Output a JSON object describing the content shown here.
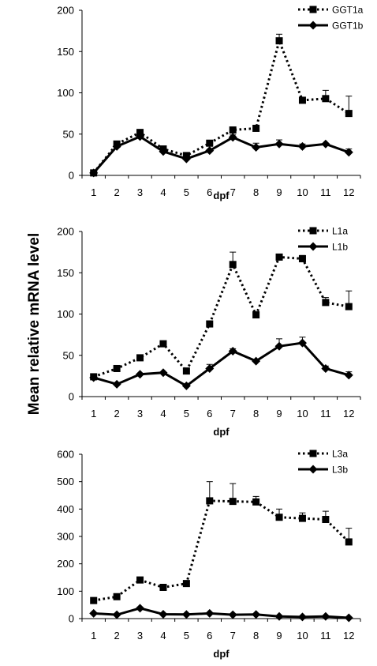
{
  "ylabel": "Mean  relative  mRNA  level",
  "chart_data": [
    {
      "type": "line",
      "xlabel": "dpf",
      "x": [
        "1",
        "2",
        "3",
        "4",
        "5",
        "6",
        "7",
        "8",
        "9",
        "10",
        "11",
        "12"
      ],
      "ylim": [
        0,
        200
      ],
      "yticks": [
        0,
        50,
        100,
        150,
        200
      ],
      "grid": false,
      "legend_position": "top-right",
      "series": [
        {
          "name": "GGT1a",
          "style": "dotted",
          "marker": "square",
          "values": [
            3,
            38,
            52,
            32,
            24,
            39,
            55,
            57,
            163,
            91,
            93,
            75
          ],
          "error": [
            0,
            2,
            2,
            2,
            2,
            2,
            2,
            2,
            8,
            3,
            10,
            21
          ]
        },
        {
          "name": "GGT1b",
          "style": "solid",
          "marker": "diamond",
          "values": [
            3,
            35,
            47,
            29,
            20,
            30,
            46,
            34,
            38,
            35,
            38,
            28
          ],
          "error": [
            0,
            2,
            2,
            2,
            2,
            2,
            3,
            5,
            5,
            3,
            2,
            4
          ]
        }
      ]
    },
    {
      "type": "line",
      "xlabel": "dpf",
      "x": [
        "1",
        "2",
        "3",
        "4",
        "5",
        "6",
        "7",
        "8",
        "9",
        "10",
        "11",
        "12"
      ],
      "ylim": [
        0,
        200
      ],
      "yticks": [
        0,
        50,
        100,
        150,
        200
      ],
      "grid": false,
      "legend_position": "top-right",
      "series": [
        {
          "name": "L1a",
          "style": "dotted",
          "marker": "square",
          "values": [
            24,
            34,
            47,
            64,
            31,
            88,
            160,
            99,
            169,
            167,
            114,
            109
          ],
          "error": [
            0,
            2,
            2,
            2,
            2,
            2,
            15,
            3,
            2,
            4,
            6,
            19
          ]
        },
        {
          "name": "L1b",
          "style": "solid",
          "marker": "diamond",
          "values": [
            23,
            15,
            27,
            29,
            13,
            34,
            55,
            43,
            61,
            65,
            34,
            26
          ],
          "error": [
            0,
            2,
            2,
            2,
            2,
            5,
            3,
            2,
            9,
            7,
            3,
            4
          ]
        }
      ]
    },
    {
      "type": "line",
      "xlabel": "dpf",
      "x": [
        "1",
        "2",
        "3",
        "4",
        "5",
        "6",
        "7",
        "8",
        "9",
        "10",
        "11",
        "12"
      ],
      "ylim": [
        0,
        600
      ],
      "yticks": [
        0,
        100,
        200,
        300,
        400,
        500,
        600
      ],
      "grid": false,
      "legend_position": "top-right",
      "series": [
        {
          "name": "L3a",
          "style": "dotted",
          "marker": "square",
          "values": [
            66,
            80,
            141,
            114,
            128,
            430,
            428,
            426,
            370,
            366,
            362,
            280
          ],
          "error": [
            3,
            5,
            5,
            5,
            5,
            70,
            65,
            20,
            30,
            20,
            30,
            50
          ]
        },
        {
          "name": "L3b",
          "style": "solid",
          "marker": "diamond",
          "values": [
            19,
            14,
            38,
            16,
            15,
            19,
            14,
            15,
            8,
            6,
            8,
            3
          ],
          "error": [
            0,
            2,
            4,
            2,
            2,
            2,
            2,
            2,
            2,
            2,
            2,
            2
          ]
        }
      ]
    }
  ]
}
